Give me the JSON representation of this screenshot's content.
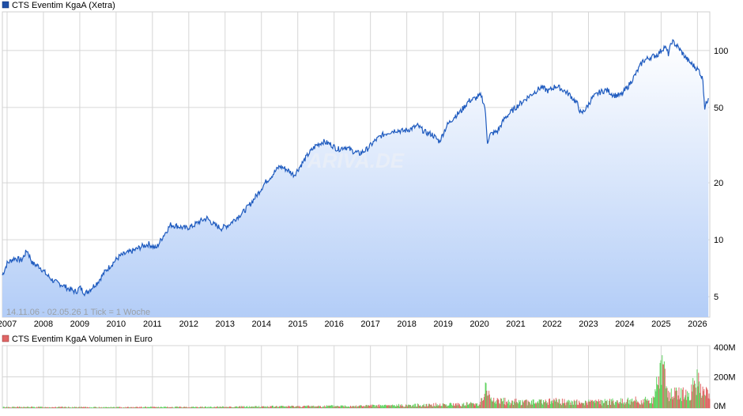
{
  "chart_data": [
    {
      "type": "area",
      "title": "CTS Eventim KgaA (Xetra)",
      "legend_placement": "top-left",
      "y_scale": "log",
      "ylim": [
        3.9,
        160
      ],
      "y_ticks": [
        5,
        10,
        20,
        50,
        100
      ],
      "y_tick_labels": [
        "5",
        "10",
        "20",
        "50",
        "100"
      ],
      "x_tick_labels": [
        "2007",
        "2008",
        "2009",
        "2010",
        "2011",
        "2012",
        "2013",
        "2014",
        "2015",
        "2016",
        "2017",
        "2018",
        "2019",
        "2020",
        "2021",
        "2022",
        "2023",
        "2024",
        "2025",
        "2026"
      ],
      "xlim": [
        2006.87,
        2026.34
      ],
      "grid": true,
      "range_note": "14.11.06 - 02.05.26    1 Tick = 1 Woche",
      "watermark": "ARIVA.DE",
      "series": [
        {
          "name": "CTS Eventim KgaA (Xetra)",
          "x": [
            2006.87,
            2007.0,
            2007.2,
            2007.4,
            2007.55,
            2007.7,
            2007.9,
            2008.1,
            2008.3,
            2008.5,
            2008.7,
            2008.9,
            2009.0,
            2009.15,
            2009.3,
            2009.5,
            2009.7,
            2009.9,
            2010.1,
            2010.3,
            2010.5,
            2010.7,
            2010.9,
            2011.1,
            2011.3,
            2011.5,
            2011.7,
            2011.9,
            2012.1,
            2012.3,
            2012.5,
            2012.7,
            2012.9,
            2013.1,
            2013.3,
            2013.5,
            2013.7,
            2013.9,
            2014.1,
            2014.3,
            2014.5,
            2014.7,
            2014.9,
            2015.1,
            2015.3,
            2015.5,
            2015.7,
            2015.9,
            2016.1,
            2016.3,
            2016.5,
            2016.7,
            2016.9,
            2017.1,
            2017.3,
            2017.5,
            2017.7,
            2017.9,
            2018.1,
            2018.3,
            2018.5,
            2018.7,
            2018.9,
            2019.1,
            2019.3,
            2019.5,
            2019.7,
            2019.9,
            2020.05,
            2020.15,
            2020.22,
            2020.3,
            2020.5,
            2020.7,
            2020.9,
            2021.1,
            2021.3,
            2021.5,
            2021.7,
            2021.9,
            2022.1,
            2022.3,
            2022.5,
            2022.7,
            2022.8,
            2022.95,
            2023.1,
            2023.3,
            2023.5,
            2023.7,
            2023.9,
            2024.1,
            2024.3,
            2024.5,
            2024.7,
            2024.9,
            2025.1,
            2025.2,
            2025.3,
            2025.45,
            2025.6,
            2025.75,
            2025.9,
            2026.05,
            2026.15,
            2026.2,
            2026.3
          ],
          "values": [
            6.5,
            7.5,
            8.0,
            7.8,
            8.8,
            7.5,
            7.2,
            6.5,
            6.0,
            5.8,
            5.5,
            5.3,
            5.6,
            5.2,
            5.5,
            6.0,
            6.8,
            7.5,
            8.2,
            8.5,
            8.8,
            9.2,
            9.5,
            9.0,
            10.5,
            12.0,
            11.8,
            11.5,
            11.8,
            12.5,
            13.0,
            12.0,
            11.5,
            12.0,
            13.0,
            14.0,
            15.5,
            17.5,
            20.0,
            22.0,
            24.5,
            23.5,
            22.0,
            25.0,
            28.5,
            31.5,
            33.0,
            32.0,
            30.0,
            31.0,
            29.5,
            28.5,
            30.0,
            33.0,
            35.5,
            37.0,
            38.0,
            37.5,
            38.5,
            40.0,
            37.0,
            36.0,
            33.0,
            40.0,
            44.5,
            48.0,
            54.0,
            56.0,
            58.0,
            50.0,
            33.0,
            36.0,
            37.5,
            44.0,
            48.0,
            52.0,
            56.0,
            60.0,
            64.0,
            61.0,
            65.0,
            62.0,
            58.0,
            52.0,
            46.0,
            50.0,
            56.0,
            60.0,
            62.0,
            58.0,
            58.0,
            65.0,
            75.0,
            88.0,
            92.0,
            95.0,
            105.0,
            96.0,
            112.0,
            105.0,
            96.0,
            88.0,
            83.0,
            78.0,
            70.0,
            50.0,
            56.0
          ]
        }
      ]
    },
    {
      "type": "bar",
      "title": "CTS Eventim KgaA Volumen in Euro",
      "legend_placement": "top-left",
      "ylim": [
        0,
        400
      ],
      "y_ticks": [
        0,
        200,
        400
      ],
      "y_tick_labels": [
        "0M",
        "200M",
        "400M"
      ],
      "xlim": [
        2006.87,
        2026.34
      ],
      "grid": true,
      "colors": {
        "up": "#5fd35f",
        "down": "#e06666"
      },
      "series": [
        {
          "name": "CTS Eventim KgaA Volumen in Euro",
          "x": [
            2007.0,
            2008.0,
            2009.0,
            2010.0,
            2011.0,
            2012.0,
            2013.0,
            2014.0,
            2015.0,
            2016.0,
            2017.0,
            2018.0,
            2019.0,
            2019.5,
            2020.0,
            2020.17,
            2020.3,
            2020.5,
            2021.0,
            2021.5,
            2022.0,
            2022.5,
            2023.0,
            2023.5,
            2024.0,
            2024.3,
            2024.5,
            2024.8,
            2025.0,
            2025.2,
            2025.4,
            2025.6,
            2025.8,
            2025.95,
            2026.1,
            2026.25
          ],
          "values": [
            8,
            8,
            7,
            7,
            8,
            8,
            10,
            12,
            14,
            16,
            18,
            22,
            28,
            30,
            36,
            150,
            70,
            55,
            50,
            45,
            55,
            45,
            45,
            50,
            55,
            60,
            55,
            70,
            380,
            90,
            120,
            110,
            100,
            230,
            130,
            110
          ]
        }
      ]
    }
  ]
}
